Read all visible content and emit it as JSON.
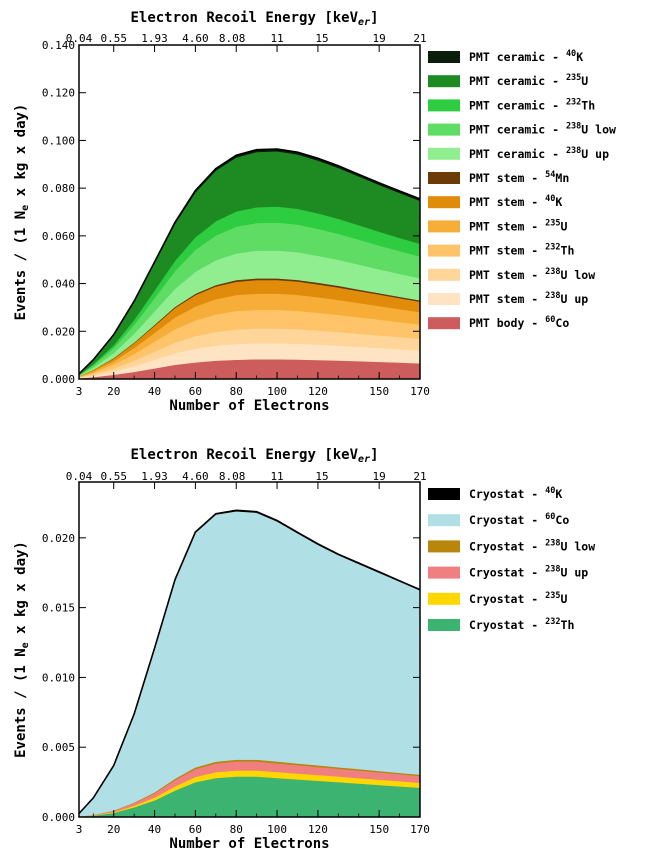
{
  "chart_data": [
    {
      "type": "area",
      "top_axis_title": "Electron Recoil Energy [keV",
      "top_axis_title_sub": "er",
      "top_axis_title_end": "]",
      "top_ticks": [
        {
          "label": "0.04",
          "x": 3
        },
        {
          "label": "0.55",
          "x": 20
        },
        {
          "label": "1.93",
          "x": 40
        },
        {
          "label": "4.60",
          "x": 60
        },
        {
          "label": "8.08",
          "x": 78
        },
        {
          "label": "11",
          "x": 100
        },
        {
          "label": "15",
          "x": 122
        },
        {
          "label": "19",
          "x": 150
        },
        {
          "label": "21",
          "x": 170
        }
      ],
      "xlabel": "Number of Electrons",
      "ylabel": "Events / (1 N",
      "ylabel_sub": "e",
      "ylabel_end": " x kg x day)",
      "xlim": [
        3,
        170
      ],
      "ylim": [
        0,
        0.14
      ],
      "x_ticks": [
        3,
        20,
        40,
        60,
        80,
        100,
        120,
        150,
        170
      ],
      "y_ticks": [
        {
          "label": "0.000",
          "value": 0
        },
        {
          "label": "0.020",
          "value": 0.02
        },
        {
          "label": "0.040",
          "value": 0.04
        },
        {
          "label": "0.060",
          "value": 0.06
        },
        {
          "label": "0.080",
          "value": 0.08
        },
        {
          "label": "0.100",
          "value": 0.1
        },
        {
          "label": "0.120",
          "value": 0.12
        },
        {
          "label": "0.140",
          "value": 0.14
        }
      ],
      "x": [
        3,
        10,
        20,
        30,
        40,
        50,
        60,
        70,
        80,
        90,
        100,
        110,
        120,
        130,
        140,
        150,
        160,
        170
      ],
      "series_stack_order": "bottom-to-top",
      "series": [
        {
          "name_pre": "PMT body - ",
          "iso_sup": "60",
          "iso": "Co",
          "color": "#cd5c5c",
          "values": [
            0.0003,
            0.0008,
            0.0018,
            0.003,
            0.0045,
            0.006,
            0.007,
            0.0077,
            0.0081,
            0.0083,
            0.0083,
            0.0082,
            0.008,
            0.0078,
            0.0075,
            0.0072,
            0.0069,
            0.0066
          ]
        },
        {
          "name_pre": "PMT stem - ",
          "iso_sup": "238",
          "iso": "U up",
          "color": "#ffe4c4",
          "values": [
            0.0002,
            0.0006,
            0.0014,
            0.0024,
            0.0036,
            0.0048,
            0.0057,
            0.0063,
            0.0066,
            0.0067,
            0.0067,
            0.0066,
            0.0064,
            0.0062,
            0.006,
            0.0058,
            0.0056,
            0.0054
          ]
        },
        {
          "name_pre": "PMT stem - ",
          "iso_sup": "238",
          "iso": "U low",
          "color": "#ffd59a",
          "values": [
            0.0002,
            0.0006,
            0.0013,
            0.0023,
            0.0034,
            0.0045,
            0.0053,
            0.0058,
            0.0061,
            0.0062,
            0.0062,
            0.0061,
            0.0059,
            0.0057,
            0.0055,
            0.0053,
            0.0051,
            0.0049
          ]
        },
        {
          "name_pre": "PMT stem - ",
          "iso_sup": "232",
          "iso": "Th",
          "color": "#ffc46a",
          "values": [
            0.0002,
            0.0007,
            0.0016,
            0.0028,
            0.0042,
            0.0056,
            0.0066,
            0.0073,
            0.0077,
            0.0078,
            0.0078,
            0.0077,
            0.0075,
            0.0072,
            0.0069,
            0.0066,
            0.0063,
            0.006
          ]
        },
        {
          "name_pre": "PMT stem - ",
          "iso_sup": "235",
          "iso": "U",
          "color": "#f6ae39",
          "values": [
            0.0002,
            0.0006,
            0.0014,
            0.0025,
            0.0037,
            0.0049,
            0.0058,
            0.0064,
            0.0067,
            0.0068,
            0.0068,
            0.0067,
            0.0065,
            0.0063,
            0.006,
            0.0057,
            0.0054,
            0.0051
          ]
        },
        {
          "name_pre": "PMT stem - ",
          "iso_sup": "40",
          "iso": "K",
          "color": "#e08c0a",
          "values": [
            0.0001,
            0.0005,
            0.0011,
            0.002,
            0.003,
            0.004,
            0.0048,
            0.0053,
            0.0056,
            0.0057,
            0.0057,
            0.0056,
            0.0054,
            0.0052,
            0.005,
            0.0048,
            0.0046,
            0.0044
          ]
        },
        {
          "name_pre": "PMT stem - ",
          "iso_sup": "54",
          "iso": "Mn",
          "color": "#6b3a05",
          "values": [
            0.0,
            0.0001,
            0.0002,
            0.0003,
            0.0004,
            0.0005,
            0.0006,
            0.0006,
            0.0007,
            0.0007,
            0.0007,
            0.0007,
            0.0007,
            0.0007,
            0.0006,
            0.0006,
            0.0006,
            0.0006
          ]
        },
        {
          "name_pre": "PMT ceramic - ",
          "iso_sup": "238",
          "iso": "U up",
          "color": "#90ee90",
          "values": [
            0.0002,
            0.0009,
            0.0021,
            0.0037,
            0.0056,
            0.0075,
            0.0092,
            0.0104,
            0.0112,
            0.0116,
            0.0117,
            0.0116,
            0.0113,
            0.0109,
            0.0105,
            0.01,
            0.0096,
            0.0092
          ]
        },
        {
          "name_pre": "PMT ceramic - ",
          "iso_sup": "238",
          "iso": "U low",
          "color": "#5fdc64",
          "values": [
            0.0002,
            0.0009,
            0.0021,
            0.0037,
            0.0056,
            0.0075,
            0.0092,
            0.0104,
            0.0112,
            0.0116,
            0.0117,
            0.0116,
            0.0113,
            0.0109,
            0.0105,
            0.01,
            0.0096,
            0.0092
          ]
        },
        {
          "name_pre": "PMT ceramic - ",
          "iso_sup": "232",
          "iso": "Th",
          "color": "#2ecc40",
          "values": [
            0.0001,
            0.0005,
            0.0012,
            0.0021,
            0.0032,
            0.0043,
            0.0053,
            0.006,
            0.0064,
            0.0066,
            0.0067,
            0.0066,
            0.0065,
            0.0063,
            0.006,
            0.0058,
            0.0055,
            0.0053
          ]
        },
        {
          "name_pre": "PMT ceramic - ",
          "iso_sup": "235",
          "iso": "U",
          "color": "#1e8b22",
          "values": [
            0.0005,
            0.0018,
            0.0042,
            0.0075,
            0.0115,
            0.0155,
            0.0188,
            0.0212,
            0.0226,
            0.0232,
            0.0232,
            0.0228,
            0.0221,
            0.0213,
            0.0205,
            0.0196,
            0.0188,
            0.018
          ]
        },
        {
          "name_pre": "PMT ceramic - ",
          "iso_sup": "40",
          "iso": "K",
          "color": "#0b1d0b",
          "values": [
            0.0,
            0.0001,
            0.0002,
            0.0003,
            0.0004,
            0.0006,
            0.0007,
            0.0008,
            0.0009,
            0.0009,
            0.0009,
            0.0009,
            0.0009,
            0.0009,
            0.0008,
            0.0008,
            0.0008,
            0.0008
          ]
        }
      ]
    },
    {
      "type": "area",
      "top_axis_title": "Electron Recoil Energy [keV",
      "top_axis_title_sub": "er",
      "top_axis_title_end": "]",
      "top_ticks": [
        {
          "label": "0.04",
          "x": 3
        },
        {
          "label": "0.55",
          "x": 20
        },
        {
          "label": "1.93",
          "x": 40
        },
        {
          "label": "4.60",
          "x": 60
        },
        {
          "label": "8.08",
          "x": 78
        },
        {
          "label": "11",
          "x": 100
        },
        {
          "label": "15",
          "x": 122
        },
        {
          "label": "19",
          "x": 150
        },
        {
          "label": "21",
          "x": 170
        }
      ],
      "xlabel": "Number of Electrons",
      "ylabel": "Events / (1 N",
      "ylabel_sub": "e",
      "ylabel_end": " x kg x day)",
      "xlim": [
        3,
        170
      ],
      "ylim": [
        0,
        0.024
      ],
      "x_ticks": [
        3,
        20,
        40,
        60,
        80,
        100,
        120,
        150,
        170
      ],
      "y_ticks": [
        {
          "label": "0.000",
          "value": 0
        },
        {
          "label": "0.005",
          "value": 0.005
        },
        {
          "label": "0.010",
          "value": 0.01
        },
        {
          "label": "0.015",
          "value": 0.015
        },
        {
          "label": "0.020",
          "value": 0.02
        }
      ],
      "x": [
        3,
        10,
        20,
        30,
        40,
        50,
        60,
        70,
        80,
        90,
        100,
        110,
        120,
        130,
        140,
        150,
        160,
        170
      ],
      "series_stack_order": "bottom-to-top",
      "series": [
        {
          "name_pre": "Cryostat - ",
          "iso_sup": "232",
          "iso": "Th",
          "color": "#3cb371",
          "values": [
            5e-05,
            0.0001,
            0.0003,
            0.0007,
            0.0012,
            0.0019,
            0.0025,
            0.0028,
            0.0029,
            0.0029,
            0.0028,
            0.0027,
            0.0026,
            0.0025,
            0.0024,
            0.0023,
            0.0022,
            0.0021
          ]
        },
        {
          "name_pre": "Cryostat - ",
          "iso_sup": "235",
          "iso": "U",
          "color": "#ffd700",
          "values": [
            0.0,
            2e-05,
            6e-05,
            0.00012,
            0.0002,
            0.0003,
            0.00038,
            0.00042,
            0.00044,
            0.00044,
            0.00043,
            0.00042,
            0.00041,
            0.0004,
            0.00039,
            0.00038,
            0.00037,
            0.00036
          ]
        },
        {
          "name_pre": "Cryostat - ",
          "iso_sup": "238",
          "iso": "U up",
          "color": "#f08080",
          "values": [
            0.0,
            3e-05,
            9e-05,
            0.00018,
            0.0003,
            0.00045,
            0.00056,
            0.00062,
            0.00064,
            0.00064,
            0.00062,
            0.0006,
            0.00058,
            0.00056,
            0.00054,
            0.00052,
            0.0005,
            0.00048
          ]
        },
        {
          "name_pre": "Cryostat - ",
          "iso_sup": "238",
          "iso": "U low",
          "color": "#b8860b",
          "values": [
            0.0,
            1e-05,
            2e-05,
            4e-05,
            7e-05,
            0.0001,
            0.00012,
            0.00013,
            0.00013,
            0.00013,
            0.00013,
            0.00012,
            0.00012,
            0.00011,
            0.00011,
            0.0001,
            0.0001,
            0.0001
          ]
        },
        {
          "name_pre": "Cryostat - ",
          "iso_sup": "60",
          "iso": "Co",
          "color": "#b0dfe5",
          "values": [
            0.0002,
            0.0012,
            0.0032,
            0.0063,
            0.0103,
            0.0142,
            0.0168,
            0.0177,
            0.0178,
            0.0177,
            0.0172,
            0.0165,
            0.0158,
            0.0152,
            0.0147,
            0.0142,
            0.0137,
            0.0132
          ]
        },
        {
          "name_pre": "Cryostat - ",
          "iso_sup": "40",
          "iso": "K",
          "color": "#000000",
          "values": [
            0.0,
            1e-05,
            2e-05,
            3e-05,
            4e-05,
            5e-05,
            6e-05,
            6e-05,
            6e-05,
            6e-05,
            6e-05,
            6e-05,
            6e-05,
            6e-05,
            6e-05,
            6e-05,
            5e-05,
            5e-05
          ]
        }
      ]
    }
  ]
}
